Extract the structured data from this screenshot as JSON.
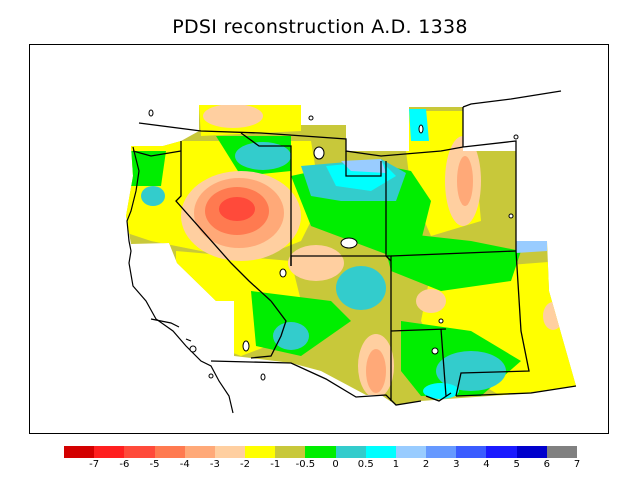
{
  "title": "PDSI reconstruction A.D. 1338",
  "legend": {
    "colors": [
      "#d30000",
      "#ff1f1f",
      "#ff4a3a",
      "#ff7a50",
      "#ffa978",
      "#ffcfa0",
      "#ffff00",
      "#c8c83a",
      "#00ee00",
      "#33cccc",
      "#00ffff",
      "#99ccff",
      "#6699ff",
      "#3a5cff",
      "#1a1aff",
      "#0000cc",
      "#808080"
    ],
    "labels": [
      "-7",
      "-6",
      "-5",
      "-4",
      "-3",
      "-2",
      "-1",
      "-0.5",
      "0",
      "0.5",
      "1",
      "2",
      "3",
      "4",
      "5",
      "6",
      "7"
    ]
  }
}
